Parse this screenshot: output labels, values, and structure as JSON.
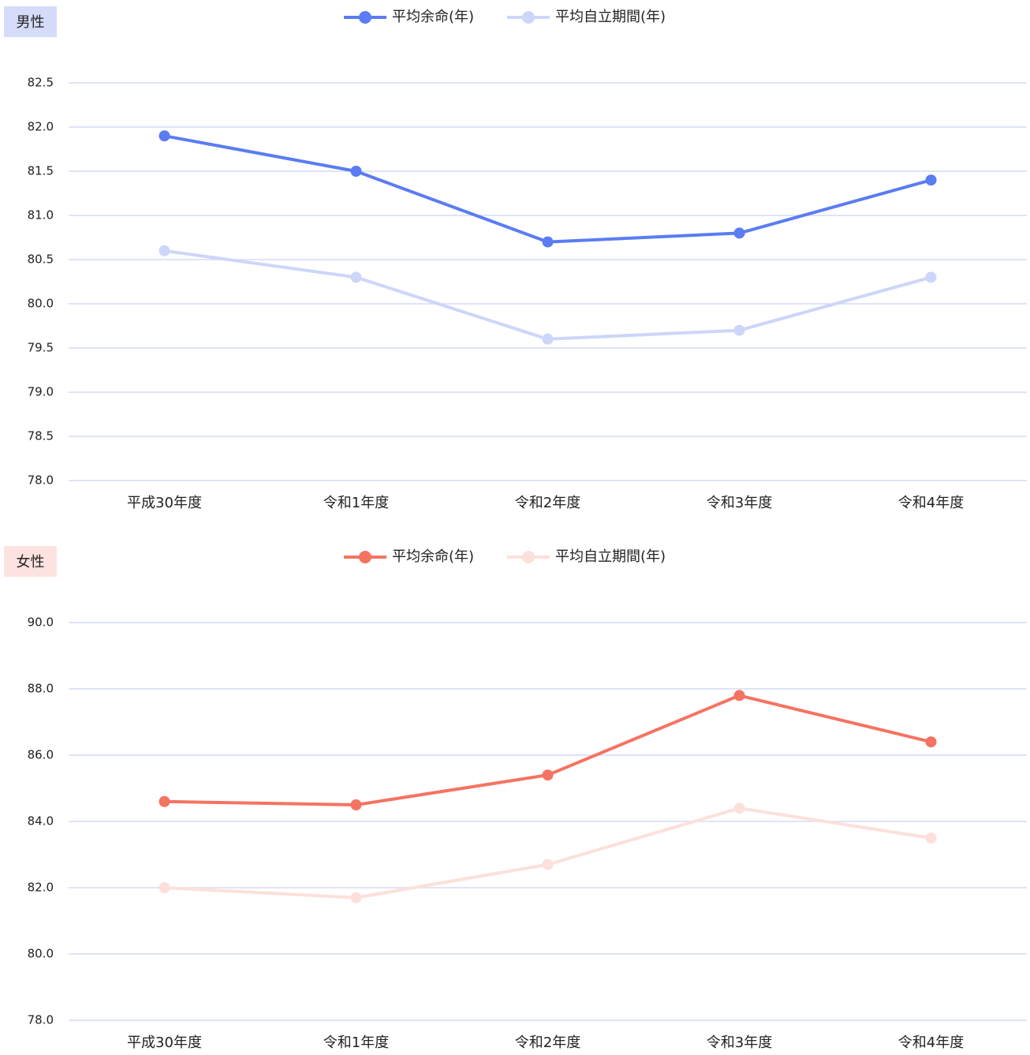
{
  "chart_data": [
    {
      "type": "line",
      "title": "男性",
      "categories": [
        "平成30年度",
        "令和1年度",
        "令和2年度",
        "令和3年度",
        "令和4年度"
      ],
      "series": [
        {
          "name": "平均余命(年)",
          "color": "#5b7cf2",
          "values": [
            81.9,
            81.5,
            80.7,
            80.8,
            81.4
          ]
        },
        {
          "name": "平均自立期間(年)",
          "color": "#cdd6f9",
          "values": [
            80.6,
            80.3,
            79.6,
            79.7,
            80.3
          ]
        }
      ],
      "ylim": [
        78,
        82.5
      ],
      "yticks": [
        {
          "value": 78,
          "label": "78.0"
        },
        78.5,
        {
          "value": 79,
          "label": "79.0"
        },
        79.5,
        {
          "value": 80,
          "label": "80.0"
        },
        80.5,
        {
          "value": 81,
          "label": "81.0"
        },
        81.5,
        {
          "value": 82,
          "label": "82.0"
        },
        82.5
      ],
      "grid": true,
      "title_color": "#d5dcfa"
    },
    {
      "type": "line",
      "title": "女性",
      "categories": [
        "平成30年度",
        "令和1年度",
        "令和2年度",
        "令和3年度",
        "令和4年度"
      ],
      "series": [
        {
          "name": "平均余命(年)",
          "color": "#f57362",
          "values": [
            84.6,
            84.5,
            85.4,
            87.8,
            86.4
          ]
        },
        {
          "name": "平均自立期間(年)",
          "color": "#fde0db",
          "values": [
            82.0,
            81.7,
            82.7,
            84.4,
            83.5
          ]
        }
      ],
      "ylim": [
        78,
        90
      ],
      "yticks": [
        {
          "value": 78,
          "label": "78.0"
        },
        {
          "value": 80,
          "label": "80.0"
        },
        {
          "value": 82,
          "label": "82.0"
        },
        {
          "value": 84,
          "label": "84.0"
        },
        {
          "value": 86,
          "label": "86.0"
        },
        {
          "value": 88,
          "label": "88.0"
        },
        {
          "value": 90,
          "label": "90.0"
        }
      ],
      "grid": true,
      "title_color": "#fde3df"
    }
  ]
}
